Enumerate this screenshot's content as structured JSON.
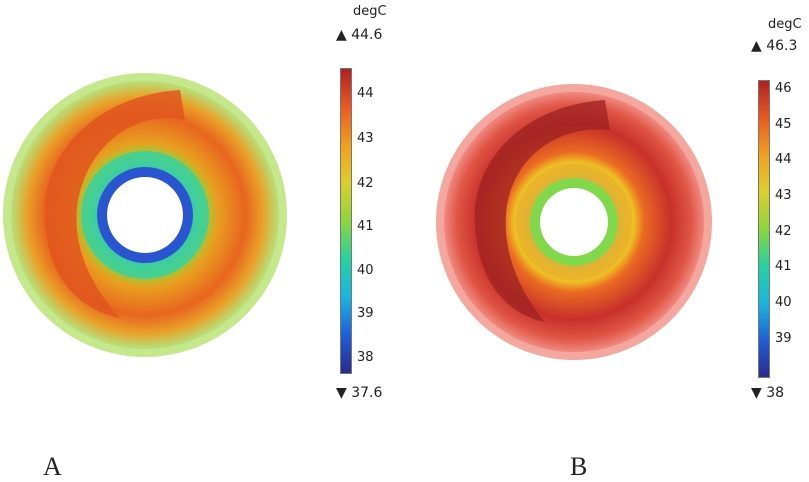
{
  "colors": {
    "scale": [
      "#2a2a8f",
      "#1e5fd8",
      "#18b6e0",
      "#26d2a0",
      "#8bd63a",
      "#dcd02a",
      "#f0a01c",
      "#ea5a22",
      "#b0201f"
    ],
    "background": "#ffffff"
  },
  "panels": [
    {
      "label": "A",
      "unit": "degC",
      "max_label": "▲ 44.6",
      "min_label": "▼ 37.6",
      "max": 44.6,
      "min": 37.6,
      "ticks": [
        "44",
        "43",
        "42",
        "41",
        "40",
        "39",
        "38"
      ]
    },
    {
      "label": "B",
      "unit": "degC",
      "max_label": "▲ 46.3",
      "min_label": "▼ 38",
      "max": 46.3,
      "min": 38,
      "ticks": [
        "46",
        "45",
        "44",
        "43",
        "42",
        "41",
        "40",
        "39"
      ]
    }
  ]
}
